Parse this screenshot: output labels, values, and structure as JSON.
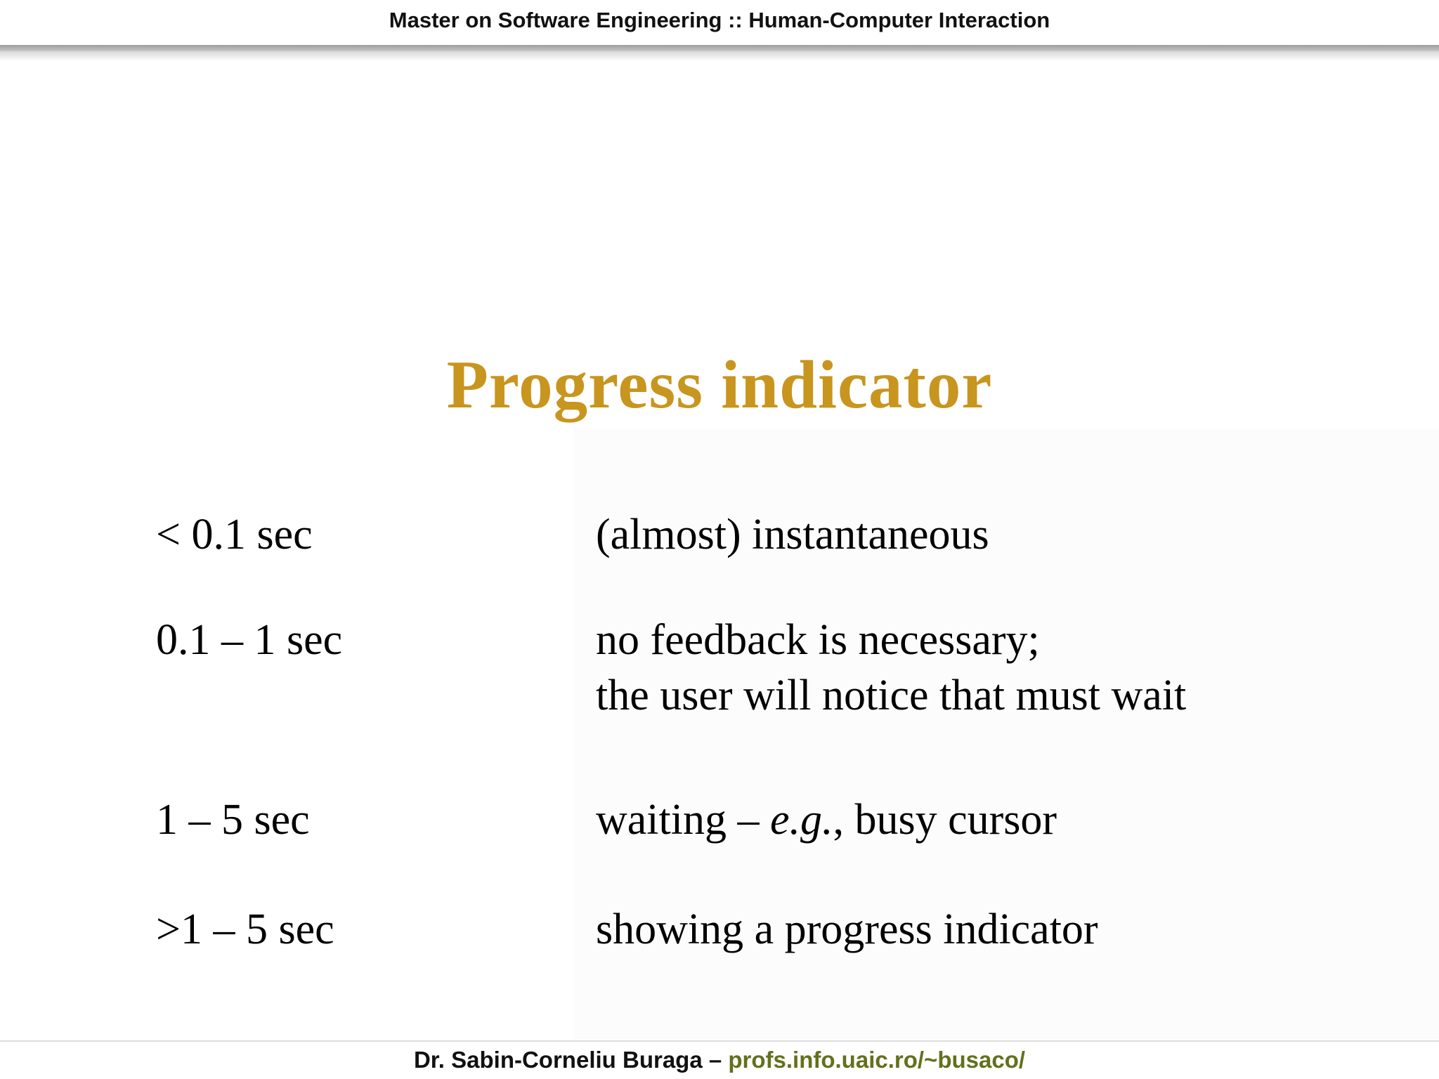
{
  "header": {
    "title": "Master on Software Engineering :: Human-Computer Interaction"
  },
  "slide": {
    "title": "Progress indicator",
    "rows": [
      {
        "time": "< 0.1 sec",
        "description": "(almost) instantaneous"
      },
      {
        "time": "0.1 – 1 sec",
        "description_line1": "no feedback is necessary;",
        "description_line2": "the user will notice that must wait"
      },
      {
        "time": "1 – 5 sec",
        "description_prefix": "waiting – ",
        "description_italic": "e.g.",
        "description_suffix": ", busy cursor"
      },
      {
        "time": ">1 – 5 sec",
        "description": "showing a progress indicator"
      }
    ]
  },
  "footer": {
    "author": "Dr. Sabin-Corneliu Buraga – ",
    "link": "profs.info.uaic.ro/~busaco/"
  },
  "colors": {
    "title_gold": "#c8951e",
    "link_olive": "#62711c",
    "body_text": "#000000",
    "divider_gray": "#9d9d9d"
  }
}
